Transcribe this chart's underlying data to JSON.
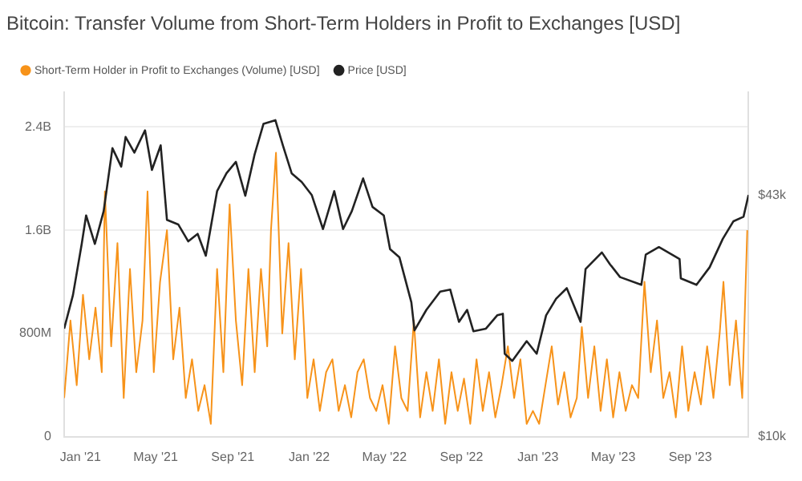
{
  "chart_data": {
    "type": "line",
    "title": "Bitcoin: Transfer Volume from Short-Term Holders in Profit to Exchanges [USD]",
    "legend": "top left",
    "grid": "y",
    "marker": "none",
    "line_style": "solid",
    "xlim": [
      "2020-12-06",
      "2023-12-03"
    ],
    "xticks": [
      {
        "value": "2021-01",
        "label": "Jan '21"
      },
      {
        "value": "2021-05",
        "label": "May '21"
      },
      {
        "value": "2021-09",
        "label": "Sep '21"
      },
      {
        "value": "2022-01",
        "label": "Jan '22"
      },
      {
        "value": "2022-05",
        "label": "May '22"
      },
      {
        "value": "2022-09",
        "label": "Sep '22"
      },
      {
        "value": "2023-01",
        "label": "Jan '23"
      },
      {
        "value": "2023-05",
        "label": "May '23"
      },
      {
        "value": "2023-09",
        "label": "Sep '23"
      }
    ],
    "ylim": [
      0,
      2670000000.0
    ],
    "yticks": [
      0,
      {
        "value": 800000000.0,
        "label": "800M"
      },
      {
        "value": 1600000000.0,
        "label": "1.6B"
      },
      {
        "value": 2400000000.0,
        "label": "2.4B"
      }
    ],
    "log": "y2",
    "y2lim": [
      10000,
      80000
    ],
    "y2ticks": [
      {
        "value": 10000,
        "label": "$10k"
      },
      {
        "value": 43000,
        "label": "$43k"
      }
    ],
    "series": [
      {
        "name": "Short-Term Holder in Profit to Exchanges (Volume) [USD]",
        "color": "#f7931a",
        "axis": "y",
        "x": [
          "2020-12-06",
          "2020-12-16",
          "2020-12-26",
          "2021-01-05",
          "2021-01-15",
          "2021-01-25",
          "2021-02-04",
          "2021-02-09",
          "2021-02-19",
          "2021-03-01",
          "2021-03-11",
          "2021-03-21",
          "2021-03-31",
          "2021-04-10",
          "2021-04-18",
          "2021-04-28",
          "2021-05-08",
          "2021-05-19",
          "2021-05-29",
          "2021-06-08",
          "2021-06-18",
          "2021-06-28",
          "2021-07-08",
          "2021-07-18",
          "2021-07-28",
          "2021-08-07",
          "2021-08-17",
          "2021-08-27",
          "2021-09-06",
          "2021-09-16",
          "2021-09-26",
          "2021-10-06",
          "2021-10-16",
          "2021-10-26",
          "2021-11-01",
          "2021-11-09",
          "2021-11-19",
          "2021-11-29",
          "2021-12-09",
          "2021-12-19",
          "2021-12-29",
          "2022-01-08",
          "2022-01-18",
          "2022-01-28",
          "2022-02-07",
          "2022-02-17",
          "2022-02-27",
          "2022-03-09",
          "2022-03-19",
          "2022-03-29",
          "2022-04-08",
          "2022-04-18",
          "2022-04-28",
          "2022-05-08",
          "2022-05-18",
          "2022-05-28",
          "2022-06-07",
          "2022-06-17",
          "2022-06-27",
          "2022-07-07",
          "2022-07-17",
          "2022-07-27",
          "2022-08-06",
          "2022-08-16",
          "2022-08-26",
          "2022-09-05",
          "2022-09-15",
          "2022-09-25",
          "2022-10-05",
          "2022-10-15",
          "2022-10-25",
          "2022-11-04",
          "2022-11-14",
          "2022-11-24",
          "2022-12-04",
          "2022-12-14",
          "2022-12-24",
          "2023-01-03",
          "2023-01-13",
          "2023-01-23",
          "2023-02-02",
          "2023-02-12",
          "2023-02-22",
          "2023-03-04",
          "2023-03-12",
          "2023-03-22",
          "2023-04-01",
          "2023-04-11",
          "2023-04-21",
          "2023-05-01",
          "2023-05-11",
          "2023-05-21",
          "2023-05-31",
          "2023-06-10",
          "2023-06-20",
          "2023-06-30",
          "2023-07-10",
          "2023-07-20",
          "2023-07-30",
          "2023-08-09",
          "2023-08-19",
          "2023-08-29",
          "2023-09-08",
          "2023-09-18",
          "2023-09-28",
          "2023-10-08",
          "2023-10-18",
          "2023-10-24",
          "2023-11-03",
          "2023-11-13",
          "2023-11-23",
          "2023-12-01"
        ],
        "values": [
          300000000.0,
          900000000.0,
          400000000.0,
          1100000000.0,
          600000000.0,
          1000000000.0,
          500000000.0,
          1900000000.0,
          700000000.0,
          1500000000.0,
          300000000.0,
          1300000000.0,
          500000000.0,
          900000000.0,
          1900000000.0,
          500000000.0,
          1200000000.0,
          1600000000.0,
          600000000.0,
          1000000000.0,
          300000000.0,
          600000000.0,
          200000000.0,
          400000000.0,
          100000000.0,
          1300000000.0,
          500000000.0,
          1800000000.0,
          900000000.0,
          400000000.0,
          1300000000.0,
          500000000.0,
          1300000000.0,
          700000000.0,
          1600000000.0,
          2200000000.0,
          800000000.0,
          1500000000.0,
          600000000.0,
          1300000000.0,
          300000000.0,
          600000000.0,
          200000000.0,
          500000000.0,
          600000000.0,
          200000000.0,
          400000000.0,
          150000000.0,
          500000000.0,
          600000000.0,
          300000000.0,
          200000000.0,
          400000000.0,
          100000000.0,
          700000000.0,
          300000000.0,
          200000000.0,
          900000000.0,
          150000000.0,
          500000000.0,
          200000000.0,
          600000000.0,
          100000000.0,
          500000000.0,
          200000000.0,
          450000000.0,
          100000000.0,
          600000000.0,
          200000000.0,
          500000000.0,
          150000000.0,
          400000000.0,
          700000000.0,
          300000000.0,
          600000000.0,
          100000000.0,
          200000000.0,
          100000000.0,
          400000000.0,
          700000000.0,
          250000000.0,
          500000000.0,
          150000000.0,
          300000000.0,
          850000000.0,
          300000000.0,
          700000000.0,
          200000000.0,
          600000000.0,
          150000000.0,
          500000000.0,
          200000000.0,
          400000000.0,
          300000000.0,
          1200000000.0,
          500000000.0,
          900000000.0,
          300000000.0,
          500000000.0,
          150000000.0,
          700000000.0,
          200000000.0,
          500000000.0,
          250000000.0,
          700000000.0,
          300000000.0,
          800000000.0,
          1200000000.0,
          400000000.0,
          900000000.0,
          300000000.0,
          1600000000.0
        ]
      },
      {
        "name": "Price [USD]",
        "color": "#222222",
        "axis": "y2",
        "x": [
          "2020-12-06",
          "2020-12-20",
          "2021-01-03",
          "2021-01-10",
          "2021-01-24",
          "2021-02-07",
          "2021-02-21",
          "2021-03-07",
          "2021-03-14",
          "2021-03-28",
          "2021-04-14",
          "2021-04-25",
          "2021-05-09",
          "2021-05-19",
          "2021-06-06",
          "2021-06-22",
          "2021-07-07",
          "2021-07-20",
          "2021-08-07",
          "2021-08-22",
          "2021-09-06",
          "2021-09-21",
          "2021-10-06",
          "2021-10-20",
          "2021-11-08",
          "2021-11-20",
          "2021-12-04",
          "2021-12-20",
          "2022-01-05",
          "2022-01-23",
          "2022-02-10",
          "2022-02-24",
          "2022-03-10",
          "2022-03-28",
          "2022-04-12",
          "2022-04-30",
          "2022-05-10",
          "2022-05-25",
          "2022-06-13",
          "2022-06-18",
          "2022-07-07",
          "2022-07-29",
          "2022-08-14",
          "2022-08-28",
          "2022-09-10",
          "2022-09-20",
          "2022-10-10",
          "2022-10-28",
          "2022-11-06",
          "2022-11-09",
          "2022-11-21",
          "2022-12-14",
          "2022-12-30",
          "2023-01-14",
          "2023-01-30",
          "2023-02-16",
          "2023-03-10",
          "2023-03-18",
          "2023-04-13",
          "2023-04-26",
          "2023-05-12",
          "2023-06-15",
          "2023-06-22",
          "2023-07-13",
          "2023-08-15",
          "2023-08-17",
          "2023-09-11",
          "2023-10-02",
          "2023-10-23",
          "2023-11-09",
          "2023-11-25",
          "2023-12-03"
        ],
        "values": [
          19200,
          23500,
          32000,
          38000,
          32000,
          39000,
          57000,
          51000,
          61000,
          55500,
          63500,
          50000,
          58000,
          37000,
          36000,
          32500,
          34000,
          29800,
          44000,
          49000,
          52500,
          42800,
          55000,
          66000,
          67500,
          58000,
          49000,
          46500,
          43000,
          35000,
          44000,
          35000,
          39000,
          47500,
          40000,
          38000,
          31000,
          29500,
          22500,
          19000,
          21500,
          24000,
          24300,
          20000,
          21500,
          18900,
          19200,
          20800,
          21000,
          16500,
          15800,
          17800,
          16500,
          20800,
          23000,
          24500,
          20000,
          27500,
          30400,
          28300,
          26200,
          25000,
          30000,
          31400,
          29200,
          26000,
          25000,
          27800,
          33000,
          36700,
          37700,
          43000
        ]
      }
    ]
  }
}
